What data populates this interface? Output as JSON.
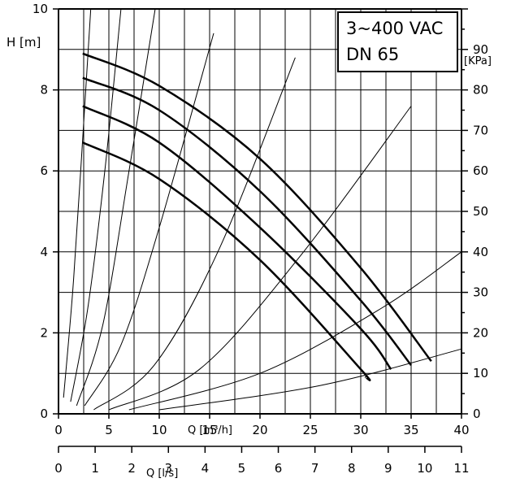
{
  "chart_data": {
    "type": "line",
    "title_lines": [
      "3~400 VAC",
      "DN 65"
    ],
    "ylabel_left": "H [m]",
    "ylabel_right": "[KPa]",
    "xlabel_flow_m3h": "Q [m³/h]",
    "xlabel_flow_ls": "Q [l/s]",
    "x_m3h": {
      "range": [
        0,
        40
      ],
      "ticks": [
        "0",
        "5",
        "10",
        "15",
        "20",
        "25",
        "30",
        "35",
        "40"
      ]
    },
    "x_ls": {
      "range": [
        0,
        11
      ],
      "ticks": [
        "0",
        "1",
        "2",
        "3",
        "4",
        "5",
        "6",
        "7",
        "8",
        "9",
        "10",
        "11"
      ]
    },
    "y_m": {
      "range": [
        0,
        10
      ],
      "ticks": [
        "0",
        "2",
        "4",
        "6",
        "8",
        "10"
      ]
    },
    "y_kpa": {
      "range": [
        0,
        100
      ],
      "ticks": [
        "0",
        "10",
        "20",
        "30",
        "40",
        "50",
        "60",
        "70",
        "80",
        "90"
      ]
    },
    "grid": true,
    "pump_curves": [
      {
        "points": [
          [
            2.4,
            8.9
          ],
          [
            10,
            8.1
          ],
          [
            20,
            6.3
          ],
          [
            30,
            3.6
          ],
          [
            37,
            1.3
          ]
        ]
      },
      {
        "points": [
          [
            2.4,
            8.3
          ],
          [
            10,
            7.5
          ],
          [
            20,
            5.5
          ],
          [
            30,
            2.8
          ],
          [
            35,
            1.2
          ]
        ]
      },
      {
        "points": [
          [
            2.4,
            7.6
          ],
          [
            10,
            6.7
          ],
          [
            20,
            4.6
          ],
          [
            30,
            2.1
          ],
          [
            33,
            1.1
          ]
        ]
      },
      {
        "points": [
          [
            2.4,
            6.7
          ],
          [
            10,
            5.8
          ],
          [
            20,
            3.8
          ],
          [
            30,
            1.1
          ],
          [
            30.5,
            0.9
          ]
        ]
      }
    ],
    "system_curves": [
      {
        "points": [
          [
            0.5,
            0.4
          ],
          [
            1.4,
            3.0
          ],
          [
            2.2,
            6.0
          ],
          [
            3.2,
            10.0
          ]
        ]
      },
      {
        "points": [
          [
            1.2,
            0.3
          ],
          [
            2.9,
            2.6
          ],
          [
            4.6,
            6.0
          ],
          [
            6.2,
            10.0
          ]
        ]
      },
      {
        "points": [
          [
            1.8,
            0.2
          ],
          [
            4.4,
            2.2
          ],
          [
            7.0,
            6.0
          ],
          [
            9.6,
            10.0
          ]
        ]
      },
      {
        "points": [
          [
            2.6,
            0.2
          ],
          [
            6.2,
            1.7
          ],
          [
            10.0,
            4.6
          ],
          [
            15.4,
            9.4
          ]
        ]
      },
      {
        "points": [
          [
            3.5,
            0.1
          ],
          [
            9.5,
            1.2
          ],
          [
            16.0,
            4.1
          ],
          [
            23.5,
            8.8
          ]
        ]
      },
      {
        "points": [
          [
            5.0,
            0.1
          ],
          [
            14.0,
            1.1
          ],
          [
            24.0,
            3.9
          ],
          [
            35.0,
            7.6
          ]
        ]
      },
      {
        "points": [
          [
            7.0,
            0.1
          ],
          [
            20.0,
            1.0
          ],
          [
            32.0,
            2.6
          ],
          [
            40.0,
            4.0
          ]
        ]
      },
      {
        "points": [
          [
            10.0,
            0.1
          ],
          [
            26.0,
            0.7
          ],
          [
            40.0,
            1.6
          ]
        ]
      }
    ]
  }
}
